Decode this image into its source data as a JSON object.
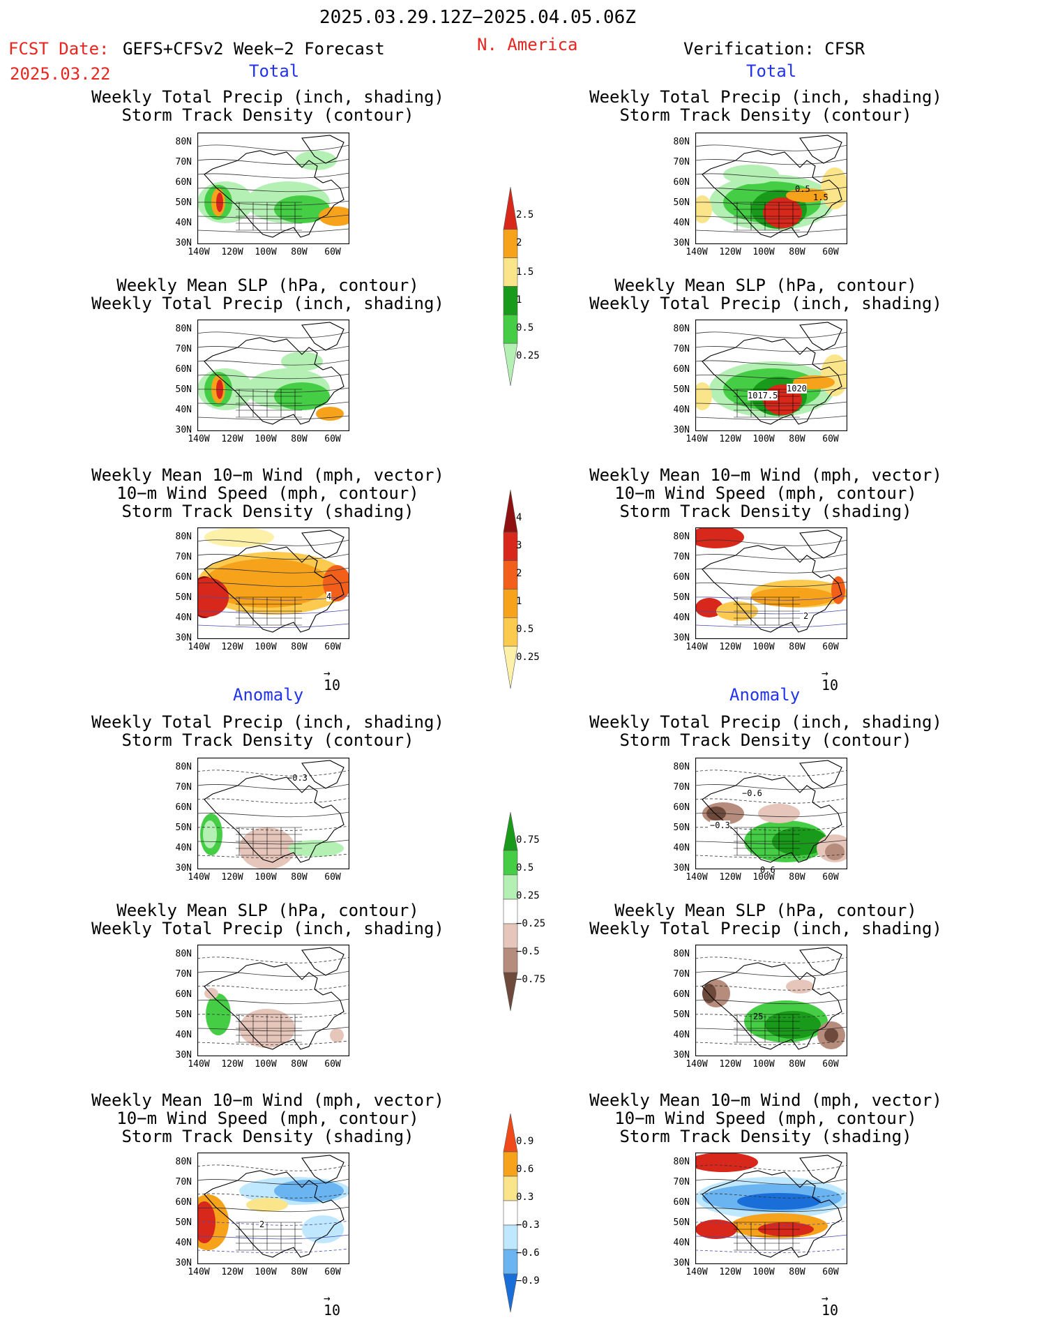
{
  "header": {
    "title": "2025.03.29.12Z−2025.04.05.06Z",
    "fcst_label": "FCST Date:",
    "fcst_model": "GEFS+CFSv2 Week−2 Forecast",
    "fcst_date": "2025.03.22",
    "region": "N. America",
    "verification": "Verification: CFSR"
  },
  "sections": {
    "total": "Total",
    "anomaly": "Anomaly"
  },
  "panel_titles": {
    "precip_track": [
      "Weekly Total Precip (inch, shading)",
      "Storm Track Density (contour)"
    ],
    "slp_precip": [
      "Weekly Mean SLP (hPa, contour)",
      "Weekly Total Precip (inch, shading)"
    ],
    "wind_track": [
      "Weekly Mean 10−m Wind (mph, vector)",
      "10−m Wind Speed (mph, contour)",
      "Storm Track Density (shading)"
    ]
  },
  "axes": {
    "lat": [
      "80N",
      "70N",
      "60N",
      "50N",
      "40N",
      "30N"
    ],
    "lon": [
      "140W",
      "120W",
      "100W",
      "80W",
      "60W"
    ]
  },
  "vector_ref": "10",
  "colorbars": {
    "precip_total": {
      "labels": [
        "2.5",
        "2",
        "1.5",
        "1",
        "0.5",
        "0.25"
      ],
      "colors": [
        "#d8271b",
        "#f7a21b",
        "#fbe58a",
        "#1a9a1a",
        "#46cd46",
        "#b4f0b4"
      ]
    },
    "track_total": {
      "labels": [
        "4",
        "3",
        "2",
        "1",
        "0.5",
        "0.25"
      ],
      "colors": [
        "#8f1010",
        "#d8271b",
        "#f25f1a",
        "#f7a21b",
        "#fbca4f",
        "#fdf0a8"
      ]
    },
    "precip_anom": {
      "labels": [
        "0.75",
        "0.5",
        "0.25",
        "−0.25",
        "−0.5",
        "−0.75"
      ],
      "colors": [
        "#1a9a1a",
        "#46cd46",
        "#b4f0b4",
        "#ffffff",
        "#e6c6ba",
        "#b68c7c",
        "#6e4a3c"
      ]
    },
    "track_anom": {
      "labels": [
        "0.9",
        "0.6",
        "0.3",
        "−0.3",
        "−0.6",
        "−0.9"
      ],
      "colors": [
        "#f04a1a",
        "#f7a21b",
        "#fbe58a",
        "#ffffff",
        "#bfe8ff",
        "#6ab4f2",
        "#1a6ed8"
      ]
    }
  },
  "map_labels": {
    "p1r": [
      "0.5",
      "1.5"
    ],
    "p2r": [
      "1017.5",
      "1020"
    ],
    "p3l": [
      "4"
    ],
    "p3r": [
      "2"
    ],
    "p4l": [
      "−0.3"
    ],
    "p4r": [
      "−0.6",
      "−0.3",
      "0.6"
    ],
    "p5r": [
      "25"
    ],
    "p6l": [
      "2"
    ]
  }
}
